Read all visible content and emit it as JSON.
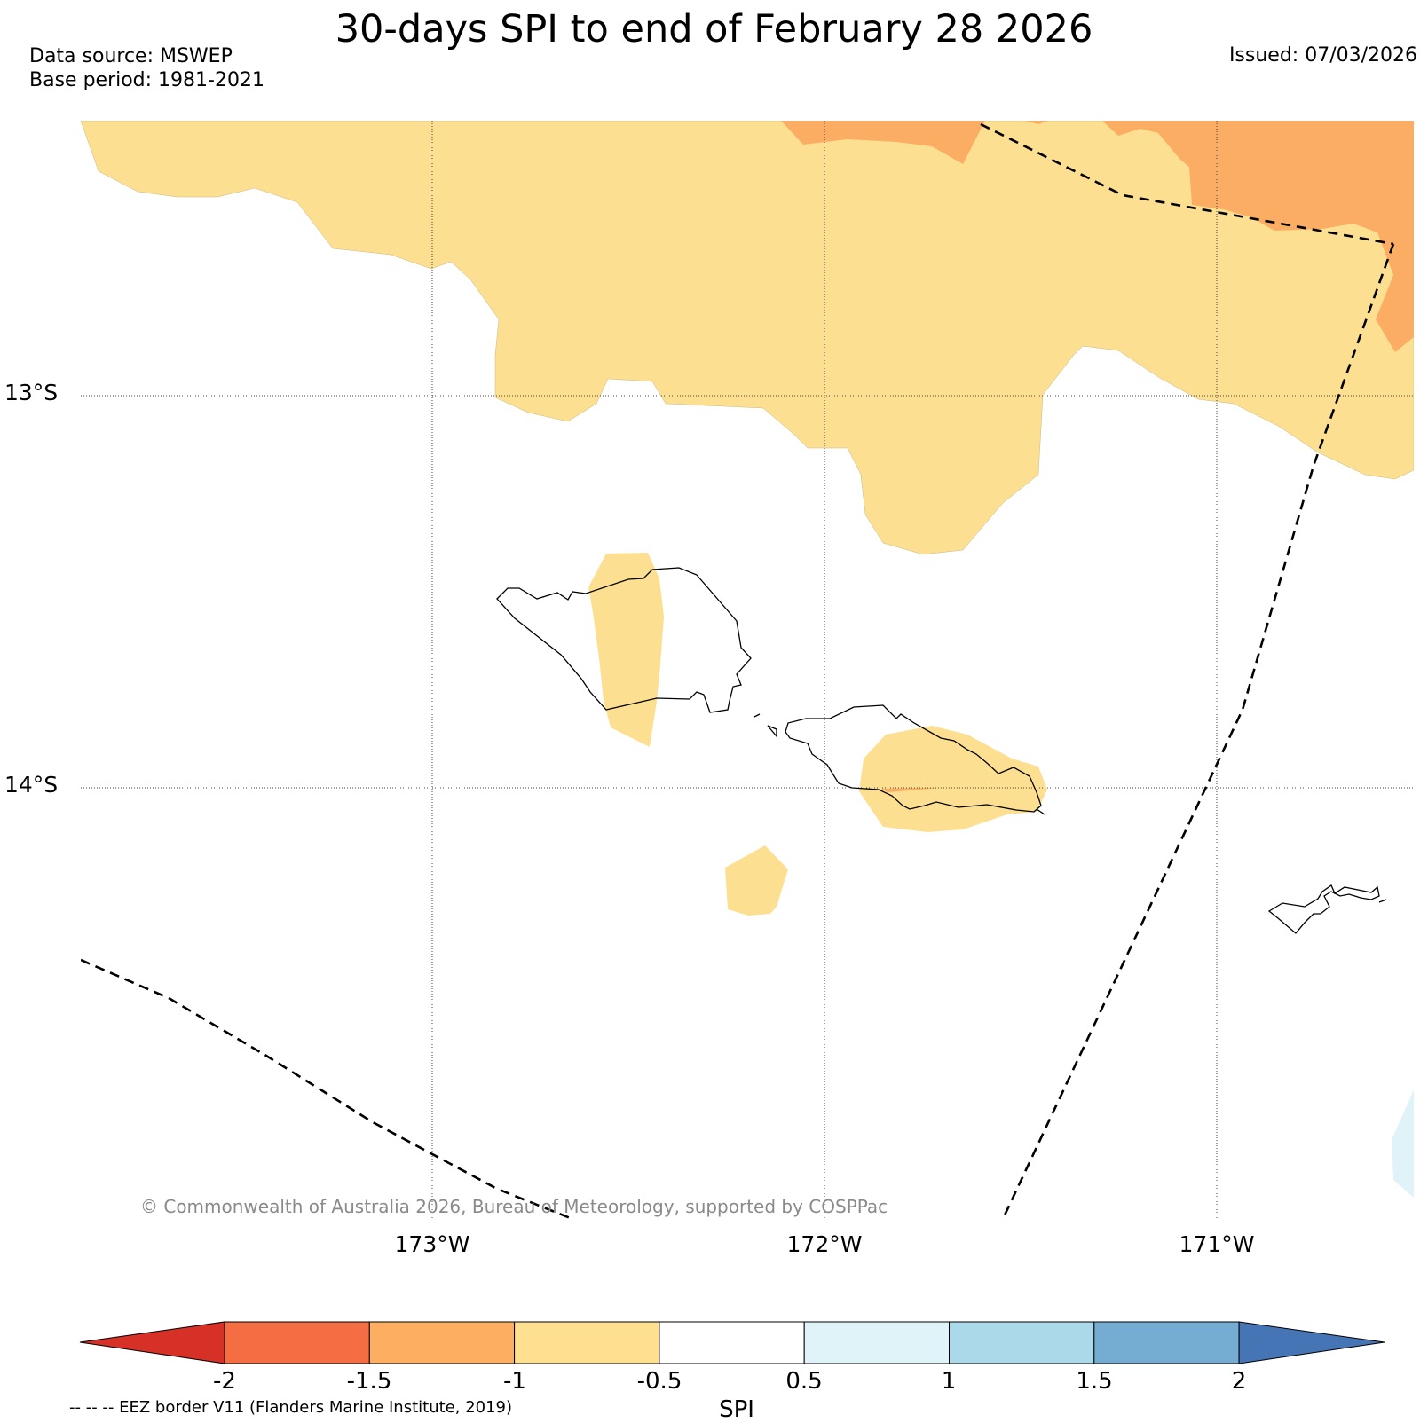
{
  "header": {
    "title": "30-days SPI to end of February 28 2026",
    "data_source": "Data source: MSWEP",
    "base_period": "Base period: 1981-2021",
    "issued": "Issued: 07/03/2026"
  },
  "map": {
    "lat_labels": [
      "13°S",
      "14°S"
    ],
    "lon_labels": [
      "173°W",
      "172°W",
      "171°W"
    ],
    "copyright": "© Commonwealth of Australia 2026, Bureau of Meteorology, supported by COSPPac",
    "fill_colors": {
      "spi_minus1_to_minus0_5": "#fddf91",
      "spi_minus1_5_to_minus1": "#fbad63",
      "spi_0_5_to_1": "#e0f3f8"
    }
  },
  "colorbar": {
    "label": "SPI",
    "ticks": [
      "-2",
      "-1.5",
      "-1",
      "-0.5",
      "0.5",
      "1",
      "1.5",
      "2"
    ],
    "colors": [
      "#d73027",
      "#f46d43",
      "#fdae61",
      "#fee090",
      "#ffffff",
      "#e0f3f8",
      "#abd9e9",
      "#74add1",
      "#4575b4"
    ]
  },
  "legend": {
    "eez_note": "-- -- -- EEZ border V11 (Flanders Marine Institute, 2019)"
  }
}
